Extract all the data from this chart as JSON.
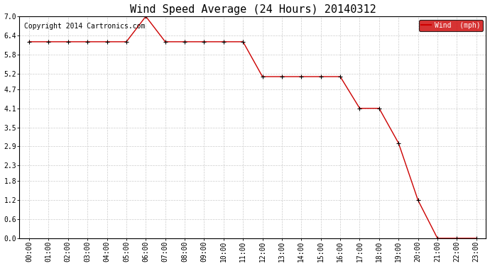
{
  "title": "Wind Speed Average (24 Hours) 20140312",
  "copyright_text": "Copyright 2014 Cartronics.com",
  "legend_label": "Wind  (mph)",
  "legend_bg": "#cc0000",
  "legend_text_color": "#ffffff",
  "x_labels": [
    "00:00",
    "01:00",
    "02:00",
    "03:00",
    "04:00",
    "05:00",
    "06:00",
    "07:00",
    "08:00",
    "09:00",
    "10:00",
    "11:00",
    "12:00",
    "13:00",
    "14:00",
    "15:00",
    "16:00",
    "17:00",
    "18:00",
    "19:00",
    "20:00",
    "21:00",
    "22:00",
    "23:00"
  ],
  "wind_data": [
    6.2,
    6.2,
    6.2,
    6.2,
    6.2,
    6.2,
    7.0,
    6.2,
    6.2,
    6.2,
    6.2,
    6.2,
    5.1,
    5.1,
    5.1,
    5.1,
    5.1,
    4.1,
    4.1,
    3.0,
    1.2,
    0.0,
    0.0,
    0.0
  ],
  "line_color": "#cc0000",
  "marker": "+",
  "marker_color": "#000000",
  "ylim": [
    0.0,
    7.0
  ],
  "yticks": [
    0.0,
    0.6,
    1.2,
    1.8,
    2.3,
    2.9,
    3.5,
    4.1,
    4.7,
    5.2,
    5.8,
    6.4,
    7.0
  ],
  "bg_color": "#ffffff",
  "plot_bg_color": "#ffffff",
  "grid_color": "#cccccc",
  "title_fontsize": 11,
  "axis_fontsize": 7,
  "copyright_fontsize": 7
}
